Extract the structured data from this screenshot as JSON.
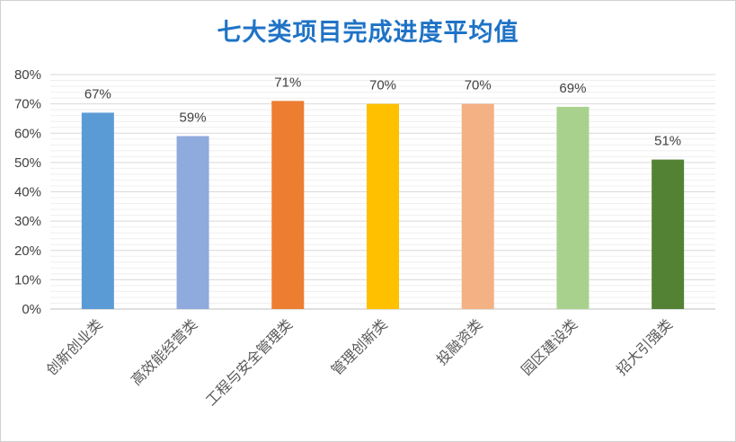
{
  "chart_data": {
    "type": "bar",
    "title": "七大类项目完成进度平均值",
    "categories": [
      "创新创业类",
      "高效能经营类",
      "工程与安全管理类",
      "管理创新类",
      "投融资类",
      "园区建设类",
      "招大引强类"
    ],
    "values": [
      67,
      59,
      71,
      70,
      70,
      69,
      51
    ],
    "data_labels": [
      "67%",
      "59%",
      "71%",
      "70%",
      "70%",
      "69%",
      "51%"
    ],
    "colors": [
      "#5b9bd5",
      "#8faadc",
      "#ed7d31",
      "#ffc000",
      "#f4b183",
      "#a9d18e",
      "#548235"
    ],
    "y_ticks": [
      "0%",
      "10%",
      "20%",
      "30%",
      "40%",
      "50%",
      "60%",
      "70%",
      "80%"
    ],
    "ylim": [
      0,
      80
    ],
    "grid": true,
    "xlabel": "",
    "ylabel": ""
  }
}
